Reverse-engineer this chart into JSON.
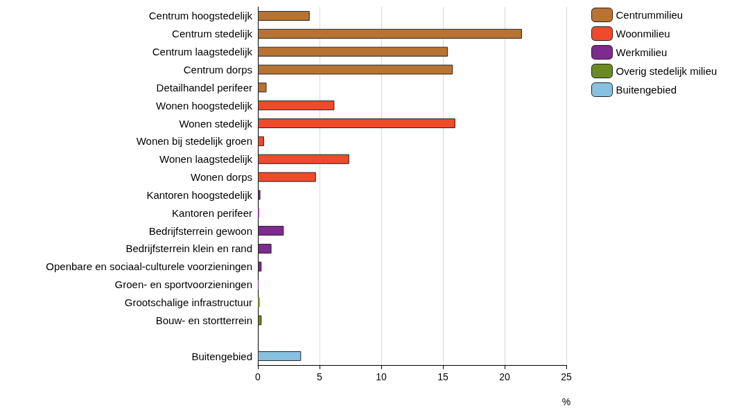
{
  "chart_data": {
    "type": "bar",
    "orientation": "horizontal",
    "xlabel": "%",
    "categories": [
      "Centrum hoogstedelijk",
      "Centrum stedelijk",
      "Centrum laagstedelijk",
      "Centrum dorps",
      "Detailhandel perifeer",
      "Wonen hoogstedelijk",
      "Wonen stedelijk",
      "Wonen bij stedelijk groen",
      "Wonen laagstedelijk",
      "Wonen dorps",
      "Kantoren hoogstedelijk",
      "Kantoren perifeer",
      "Bedrijfsterrein gewoon",
      "Bedrijfsterrein klein en rand",
      "Openbare en sociaal-culturele voorzieningen",
      "Groen- en sportvoorzieningen",
      "Grootschalige infrastructuur",
      "Bouw- en stortterrein",
      null,
      "Buitengebied"
    ],
    "series": [
      {
        "name": "Centrummilieu",
        "color": "#b87333",
        "values": [
          4.2,
          21.4,
          15.4,
          15.8,
          0.7,
          null,
          null,
          null,
          null,
          null,
          null,
          null,
          null,
          null,
          null,
          null,
          null,
          null,
          null,
          null
        ]
      },
      {
        "name": "Woonmilieu",
        "color": "#f04a2c",
        "values": [
          null,
          null,
          null,
          null,
          null,
          6.2,
          16.0,
          0.5,
          7.4,
          4.7,
          null,
          null,
          null,
          null,
          null,
          null,
          null,
          null,
          null,
          null
        ]
      },
      {
        "name": "Werkmilieu",
        "color": "#7e2a8e",
        "values": [
          null,
          null,
          null,
          null,
          null,
          null,
          null,
          null,
          null,
          null,
          0.2,
          0.1,
          2.1,
          1.1,
          0.3,
          0.05,
          null,
          null,
          null,
          null
        ]
      },
      {
        "name": "Overig stedelijk milieu",
        "color": "#6b8a23",
        "values": [
          null,
          null,
          null,
          null,
          null,
          null,
          null,
          null,
          null,
          null,
          null,
          null,
          null,
          null,
          null,
          null,
          0.15,
          0.3,
          null,
          null
        ]
      },
      {
        "name": "Buitengebied",
        "color": "#88c1e0",
        "values": [
          null,
          null,
          null,
          null,
          null,
          null,
          null,
          null,
          null,
          null,
          null,
          null,
          null,
          null,
          null,
          null,
          null,
          null,
          null,
          3.5
        ]
      }
    ],
    "xlim": [
      0,
      25
    ],
    "xticks": [
      0,
      5,
      10,
      15,
      20,
      25
    ],
    "grid": "x",
    "legend": "top right"
  }
}
